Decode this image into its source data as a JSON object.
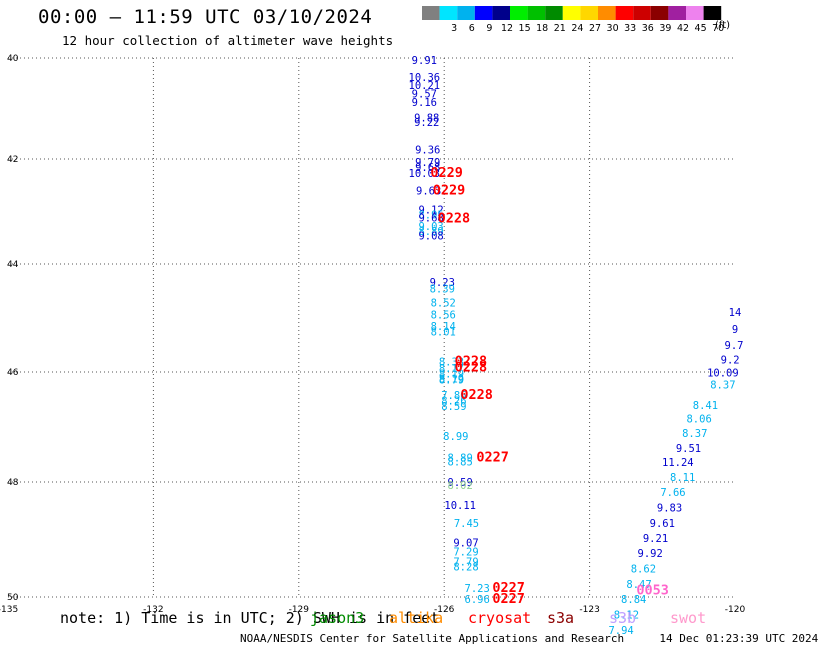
{
  "title": "00:00 – 11:59 UTC 03/10/2024",
  "subtitle": "12 hour collection of altimeter wave heights",
  "colorbar": {
    "unit": "(ft)",
    "bins": [
      {
        "color": "#808080",
        "label": ""
      },
      {
        "color": "#00e5ff",
        "label": "3"
      },
      {
        "color": "#00b2ee",
        "label": "6"
      },
      {
        "color": "#0000ff",
        "label": "9"
      },
      {
        "color": "#00008b",
        "label": "12"
      },
      {
        "color": "#00ee00",
        "label": "15"
      },
      {
        "color": "#00c000",
        "label": "18"
      },
      {
        "color": "#008b00",
        "label": "21"
      },
      {
        "color": "#ffff00",
        "label": "24"
      },
      {
        "color": "#ffd700",
        "label": "27"
      },
      {
        "color": "#ff8c00",
        "label": "30"
      },
      {
        "color": "#ff0000",
        "label": "33"
      },
      {
        "color": "#cd0000",
        "label": "36"
      },
      {
        "color": "#8b0000",
        "label": "39"
      },
      {
        "color": "#a020a0",
        "label": "42"
      },
      {
        "color": "#ee82ee",
        "label": "45"
      },
      {
        "color": "#000000",
        "label": "70"
      }
    ]
  },
  "map": {
    "lon_ticks": [
      "-135",
      "-132",
      "-129",
      "-126",
      "-123",
      "-120"
    ],
    "lat_ticks": [
      "40",
      "42",
      "44",
      "46",
      "48",
      "50"
    ]
  },
  "legend": {
    "note": "note: 1) Time is in UTC; 2) SWH is in feet",
    "satellites": [
      {
        "name": "jason3",
        "color": "#008b00"
      },
      {
        "name": "altika",
        "color": "#ff8c00"
      },
      {
        "name": "cryosat",
        "color": "#ff0000"
      },
      {
        "name": "s3a",
        "color": "#8b0000"
      },
      {
        "name": "s3b",
        "color": "#c0a0ff"
      },
      {
        "name": "swot",
        "color": "#ff99cc"
      }
    ]
  },
  "footer": {
    "credit": "NOAA/NESDIS Center for Satellite Applications and Research",
    "timestamp": "14 Dec 01:23:39 UTC 2024"
  },
  "track_a": [
    {
      "v": "9.91",
      "lon": -126.41,
      "lat": 40.12,
      "c": "#0000cd"
    },
    {
      "v": "10.36",
      "lon": -126.41,
      "lat": 40.46,
      "c": "#0000cd"
    },
    {
      "v": "10.21",
      "lon": -126.41,
      "lat": 40.61,
      "c": "#0000cd"
    },
    {
      "v": "9.57",
      "lon": -126.41,
      "lat": 40.78,
      "c": "#0000cd"
    },
    {
      "v": "9.16",
      "lon": -126.41,
      "lat": 40.95,
      "c": "#0000cd"
    },
    {
      "v": "9.88",
      "lon": -126.36,
      "lat": 41.26,
      "c": "#0000cd"
    },
    {
      "v": "9.22",
      "lon": -126.36,
      "lat": 41.35,
      "c": "#0000cd"
    },
    {
      "v": "9.36",
      "lon": -126.34,
      "lat": 41.89,
      "c": "#0000cd"
    },
    {
      "v": "9.79",
      "lon": -126.34,
      "lat": 42.13,
      "c": "#0000cd"
    },
    {
      "v": "9.68",
      "lon": -126.34,
      "lat": 42.23,
      "c": "#0000cd"
    },
    {
      "v": "10.03",
      "lon": -126.41,
      "lat": 42.34,
      "c": "#0000cd"
    },
    {
      "v": "9.63",
      "lon": -126.32,
      "lat": 42.68,
      "c": "#0000cd"
    },
    {
      "v": "9.12",
      "lon": -126.27,
      "lat": 43.04,
      "c": "#0000cd"
    },
    {
      "v": "8.95",
      "lon": -126.27,
      "lat": 43.13,
      "c": "#00b2ee"
    },
    {
      "v": "9.68",
      "lon": -126.27,
      "lat": 43.19,
      "c": "#0000cd"
    },
    {
      "v": "9.03",
      "lon": -126.27,
      "lat": 43.35,
      "c": "#00b2ee"
    },
    {
      "v": "8.89",
      "lon": -126.27,
      "lat": 43.45,
      "c": "#00b2ee"
    },
    {
      "v": "9.08",
      "lon": -126.27,
      "lat": 43.53,
      "c": "#0000cd"
    },
    {
      "v": "9.23",
      "lon": -126.04,
      "lat": 44.41,
      "c": "#0000cd"
    },
    {
      "v": "8.39",
      "lon": -126.04,
      "lat": 44.53,
      "c": "#00b2ee"
    },
    {
      "v": "8.52",
      "lon": -126.02,
      "lat": 44.79,
      "c": "#00b2ee"
    },
    {
      "v": "8.56",
      "lon": -126.02,
      "lat": 45.01,
      "c": "#00b2ee"
    },
    {
      "v": "8.14",
      "lon": -126.02,
      "lat": 45.22,
      "c": "#00b2ee"
    },
    {
      "v": "8.01",
      "lon": -126.02,
      "lat": 45.32,
      "c": "#00b2ee"
    },
    {
      "v": "8.33",
      "lon": -125.85,
      "lat": 45.88,
      "c": "#00b2ee"
    },
    {
      "v": "8.17",
      "lon": -125.85,
      "lat": 46.0,
      "c": "#00b2ee"
    },
    {
      "v": "8.19",
      "lon": -125.85,
      "lat": 46.1,
      "c": "#00b2ee"
    },
    {
      "v": "8.19",
      "lon": -125.85,
      "lat": 46.19,
      "c": "#00b2ee"
    },
    {
      "v": "8.79",
      "lon": -125.85,
      "lat": 46.21,
      "c": "#00b2ee"
    },
    {
      "v": "7.86",
      "lon": -125.8,
      "lat": 46.49,
      "c": "#00b2ee"
    },
    {
      "v": "8.26",
      "lon": -125.8,
      "lat": 46.59,
      "c": "#00b2ee"
    },
    {
      "v": "8.59",
      "lon": -125.8,
      "lat": 46.69,
      "c": "#00b2ee"
    },
    {
      "v": "8.99",
      "lon": -125.76,
      "lat": 47.24,
      "c": "#00b2ee"
    },
    {
      "v": "8.89",
      "lon": -125.67,
      "lat": 47.63,
      "c": "#00b2ee"
    },
    {
      "v": "8.85",
      "lon": -125.67,
      "lat": 47.7,
      "c": "#00b2ee"
    },
    {
      "v": "9.59",
      "lon": -125.67,
      "lat": 48.07,
      "c": "#0000cd"
    },
    {
      "v": "8.02",
      "lon": -125.67,
      "lat": 48.12,
      "c": "#90d090"
    },
    {
      "v": "10.11",
      "lon": -125.67,
      "lat": 48.47,
      "c": "#0000cd"
    },
    {
      "v": "7.45",
      "lon": -125.54,
      "lat": 48.78,
      "c": "#00b2ee"
    },
    {
      "v": "9.07",
      "lon": -125.55,
      "lat": 49.12,
      "c": "#0000cd"
    },
    {
      "v": "7.29",
      "lon": -125.55,
      "lat": 49.28,
      "c": "#00b2ee"
    },
    {
      "v": "7.79",
      "lon": -125.55,
      "lat": 49.45,
      "c": "#00b2ee"
    },
    {
      "v": "8.28",
      "lon": -125.55,
      "lat": 49.54,
      "c": "#00b2ee"
    },
    {
      "v": "7.23",
      "lon": -125.32,
      "lat": 49.91,
      "c": "#00b2ee"
    },
    {
      "v": "6.96",
      "lon": -125.32,
      "lat": 50.1,
      "c": "#00b2ee"
    }
  ],
  "track_b": [
    {
      "v": "14",
      "lon": -120.0,
      "lat": 44.96,
      "c": "#0000cd"
    },
    {
      "v": "9",
      "lon": -120.0,
      "lat": 45.28,
      "c": "#0000cd"
    },
    {
      "v": "9.7",
      "lon": -120.02,
      "lat": 45.57,
      "c": "#0000cd"
    },
    {
      "v": "9.2",
      "lon": -120.1,
      "lat": 45.84,
      "c": "#0000cd"
    },
    {
      "v": "10.09",
      "lon": -120.25,
      "lat": 46.08,
      "c": "#0000cd"
    },
    {
      "v": "8.37",
      "lon": -120.25,
      "lat": 46.3,
      "c": "#00b2ee"
    },
    {
      "v": "8.41",
      "lon": -120.61,
      "lat": 46.67,
      "c": "#00b2ee"
    },
    {
      "v": "8.06",
      "lon": -120.74,
      "lat": 46.92,
      "c": "#00b2ee"
    },
    {
      "v": "8.37",
      "lon": -120.83,
      "lat": 47.18,
      "c": "#00b2ee"
    },
    {
      "v": "9.51",
      "lon": -120.96,
      "lat": 47.45,
      "c": "#0000cd"
    },
    {
      "v": "11.24",
      "lon": -121.18,
      "lat": 47.71,
      "c": "#0000cd"
    },
    {
      "v": "8.11",
      "lon": -121.08,
      "lat": 47.98,
      "c": "#00b2ee"
    },
    {
      "v": "7.66",
      "lon": -121.28,
      "lat": 48.24,
      "c": "#00b2ee"
    },
    {
      "v": "9.83",
      "lon": -121.35,
      "lat": 48.51,
      "c": "#0000cd"
    },
    {
      "v": "9.61",
      "lon": -121.5,
      "lat": 48.78,
      "c": "#0000cd"
    },
    {
      "v": "9.21",
      "lon": -121.64,
      "lat": 49.04,
      "c": "#0000cd"
    },
    {
      "v": "9.92",
      "lon": -121.75,
      "lat": 49.3,
      "c": "#0000cd"
    },
    {
      "v": "8.62",
      "lon": -121.89,
      "lat": 49.57,
      "c": "#00b2ee"
    },
    {
      "v": "8.47",
      "lon": -121.98,
      "lat": 49.84,
      "c": "#00b2ee"
    },
    {
      "v": "8.84",
      "lon": -122.09,
      "lat": 50.1,
      "c": "#00b2ee"
    },
    {
      "v": "8.12",
      "lon": -122.24,
      "lat": 50.37,
      "c": "#00b2ee"
    },
    {
      "v": "7.94",
      "lon": -122.35,
      "lat": 50.64,
      "c": "#00b2ee"
    }
  ],
  "time_labels": [
    {
      "v": "0229",
      "lon": -125.95,
      "lat": 42.34,
      "c": "#ff0000"
    },
    {
      "v": "0229",
      "lon": -125.9,
      "lat": 42.68,
      "c": "#ff0000"
    },
    {
      "v": "0228",
      "lon": -125.8,
      "lat": 43.21,
      "c": "#ff0000"
    },
    {
      "v": "0228",
      "lon": -125.45,
      "lat": 45.88,
      "c": "#ff0000"
    },
    {
      "v": "0228",
      "lon": -125.45,
      "lat": 45.99,
      "c": "#ff0000"
    },
    {
      "v": "0228",
      "lon": -125.33,
      "lat": 46.49,
      "c": "#ff0000"
    },
    {
      "v": "0227",
      "lon": -125.0,
      "lat": 47.63,
      "c": "#ff0000"
    },
    {
      "v": "0227",
      "lon": -124.67,
      "lat": 49.91,
      "c": "#ff0000"
    },
    {
      "v": "0227",
      "lon": -124.67,
      "lat": 50.1,
      "c": "#ff0000"
    },
    {
      "v": "0053",
      "lon": -121.7,
      "lat": 49.96,
      "c": "#ff66cc"
    }
  ]
}
